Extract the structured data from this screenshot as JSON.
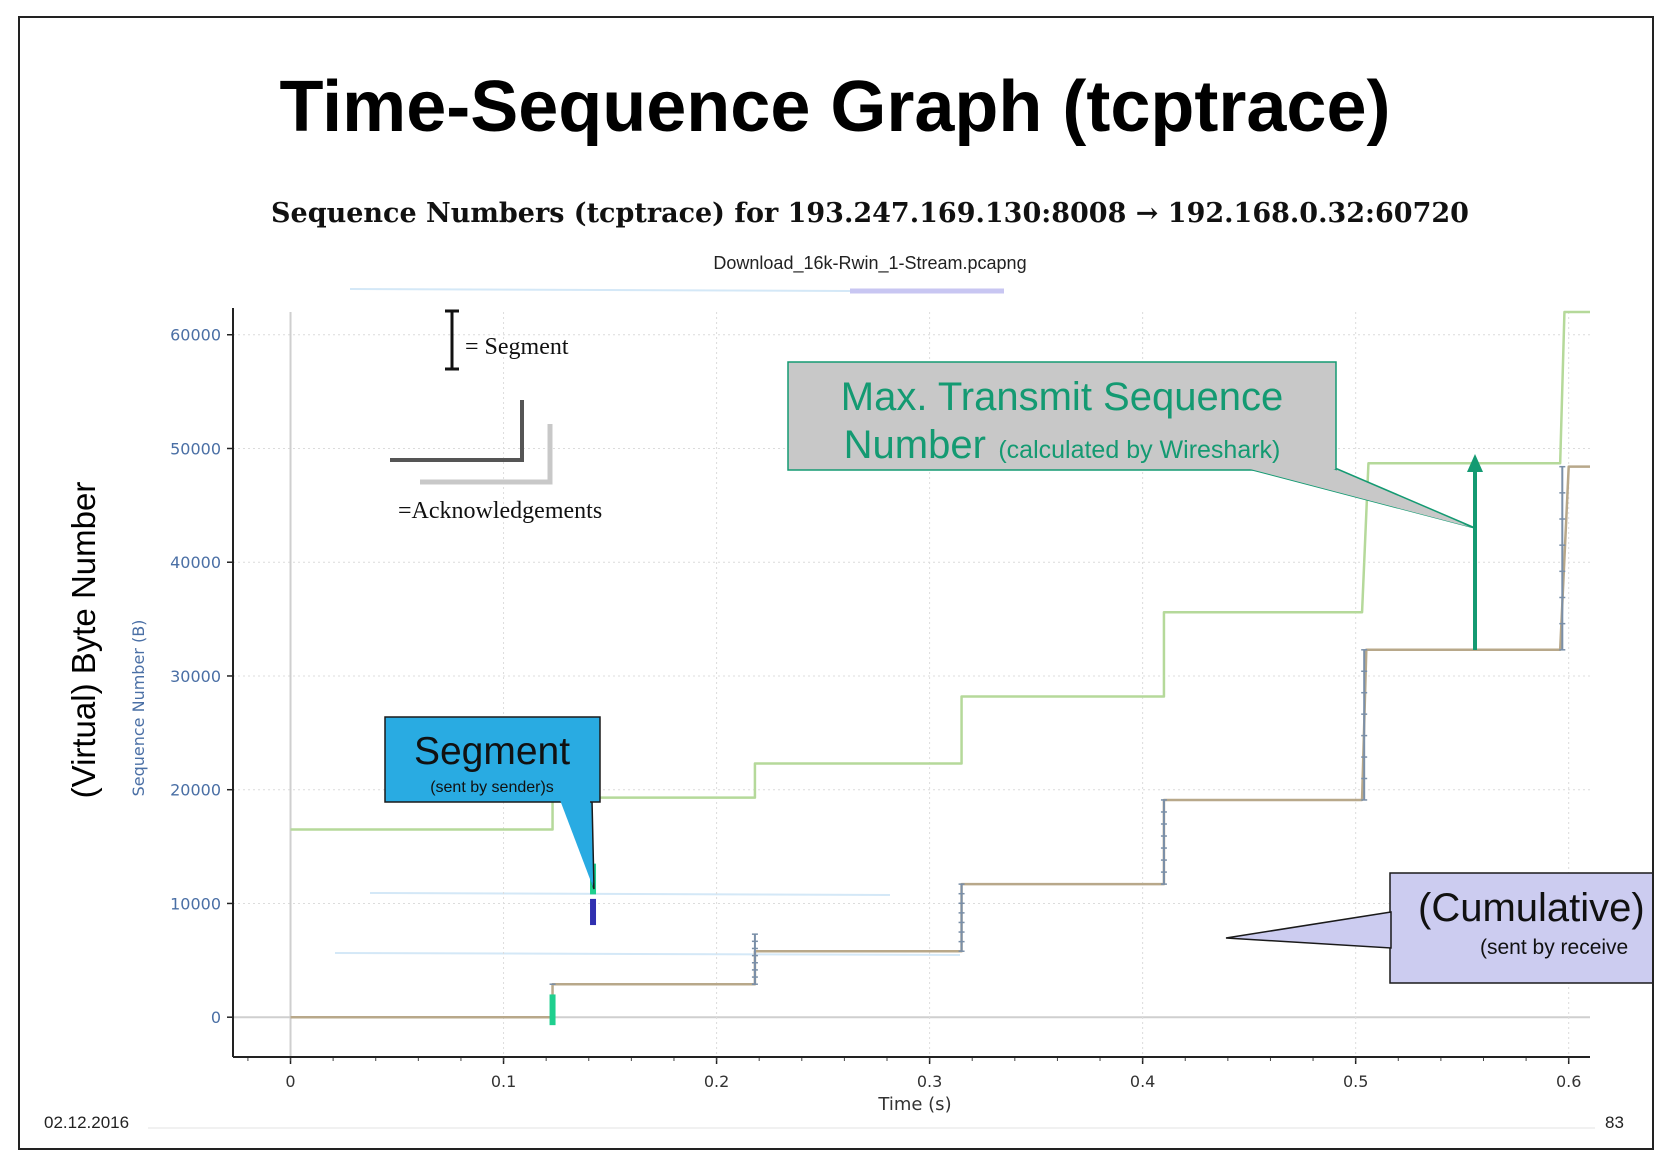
{
  "slide": {
    "title": "Time-Sequence Graph (tcptrace)",
    "side_label": "(Virtual) Byte Number",
    "date": "02.12.2016",
    "page": "83"
  },
  "colors": {
    "window_line": "#b5d99a",
    "ack_line": "#b8a88a",
    "segment_tick": "#7a8fa8",
    "axis_label": "#4a6fa5",
    "callout_green": "#149a72",
    "callout_blue": "#29abe2",
    "callout_lavender": "#ccccf0",
    "highlight_segment": "#1fcf8e",
    "highlight_ack": "#3030b0"
  },
  "chart_data": {
    "type": "line",
    "title": "Sequence Numbers (tcptrace) for 193.247.169.130:8008 → 192.168.0.32:60720",
    "subtitle": "Download_16k-Rwin_1-Stream.pcapng",
    "xlabel": "Time (s)",
    "ylabel": "Sequence Number (B)",
    "xlim": [
      -0.027,
      0.61
    ],
    "ylim": [
      -3500,
      62000
    ],
    "xticks": [
      0,
      0.1,
      0.2,
      0.3,
      0.4,
      0.5,
      0.6
    ],
    "xtick_labels": [
      "0",
      "0.1",
      "0.2",
      "0.3",
      "0.4",
      "0.5",
      "0.6"
    ],
    "yticks": [
      0,
      10000,
      20000,
      30000,
      40000,
      50000,
      60000
    ],
    "ytick_labels": [
      "0",
      "10000",
      "20000",
      "30000",
      "40000",
      "50000",
      "60000"
    ],
    "grid": true,
    "series": [
      {
        "key": "window",
        "x": [
          0,
          0.123,
          0.123,
          0.218,
          0.218,
          0.315,
          0.315,
          0.41,
          0.41,
          0.503,
          0.506,
          0.596,
          0.598,
          0.61
        ],
        "y": [
          16500,
          16500,
          19300,
          19300,
          22300,
          22300,
          28200,
          28200,
          35600,
          35600,
          48700,
          48700,
          62000,
          62000
        ]
      },
      {
        "key": "ack",
        "x": [
          0,
          0.123,
          0.123,
          0.218,
          0.218,
          0.315,
          0.315,
          0.41,
          0.41,
          0.503,
          0.505,
          0.596,
          0.6,
          0.61
        ],
        "y": [
          0,
          0,
          2900,
          2900,
          5800,
          5800,
          11700,
          11700,
          19100,
          19100,
          32300,
          32300,
          48400,
          48400
        ]
      }
    ],
    "segment_bursts": [
      {
        "x": 0.218,
        "y_from": 2900,
        "y_to": 7300
      },
      {
        "x": 0.315,
        "y_from": 5800,
        "y_to": 11700
      },
      {
        "x": 0.41,
        "y_from": 11700,
        "y_to": 19100
      },
      {
        "x": 0.504,
        "y_from": 19100,
        "y_to": 32300
      },
      {
        "x": 0.597,
        "y_from": 32300,
        "y_to": 48400
      }
    ],
    "highlight": {
      "segment": {
        "x": 0.123,
        "y_from": -700,
        "y_to": 2000
      },
      "segment_zoom": {
        "x": 0.142,
        "y_from": 10800,
        "y_to": 13500
      },
      "ack_zoom": {
        "x": 0.142,
        "y_from": 8100,
        "y_to": 10400
      }
    },
    "legend": {
      "segment_text": "= Segment",
      "ack_text": "=Acknowledgements"
    },
    "annotations": [
      {
        "key": "segment",
        "title": "Segment",
        "subtitle": "(sent by sender)s"
      },
      {
        "key": "max_seq",
        "title_line1": "Max. Transmit Sequence",
        "title_line2": "Number",
        "subtitle": "(calculated by Wireshark)"
      },
      {
        "key": "cumulative",
        "title": "(Cumulative)",
        "subtitle": "(sent by receive"
      }
    ]
  }
}
